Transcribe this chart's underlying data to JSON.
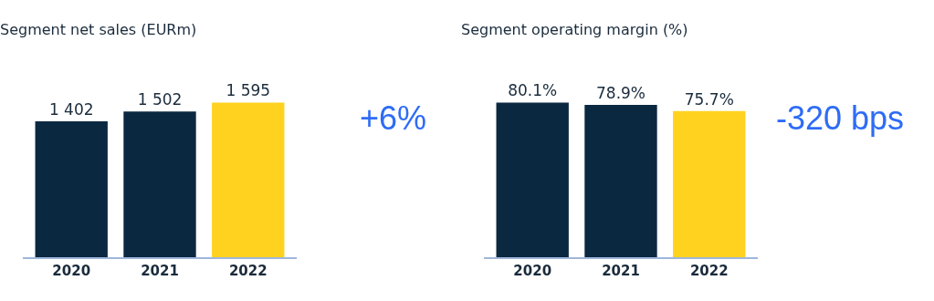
{
  "chart_data": [
    {
      "type": "bar",
      "title": "Segment net sales (EURm)",
      "categories": [
        "2020",
        "2021",
        "2022"
      ],
      "values": [
        1402,
        1502,
        1595
      ],
      "colors": [
        "#0b2841",
        "#0b2841",
        "#ffd21f"
      ],
      "value_labels": [
        "1 402",
        "1 502",
        "1 595"
      ],
      "annotations": [
        "+6%"
      ],
      "grid": false
    },
    {
      "type": "bar",
      "title": "Segment operating margin (%)",
      "categories": [
        "2020",
        "2021",
        "2022"
      ],
      "values": [
        80.1,
        78.9,
        75.7
      ],
      "colors": [
        "#0b2841",
        "#0b2841",
        "#ffd21f"
      ],
      "value_labels": [
        "80.1%",
        "78.9%",
        "75.7%"
      ],
      "annotations": [
        "-320 bps"
      ],
      "grid": false
    }
  ]
}
